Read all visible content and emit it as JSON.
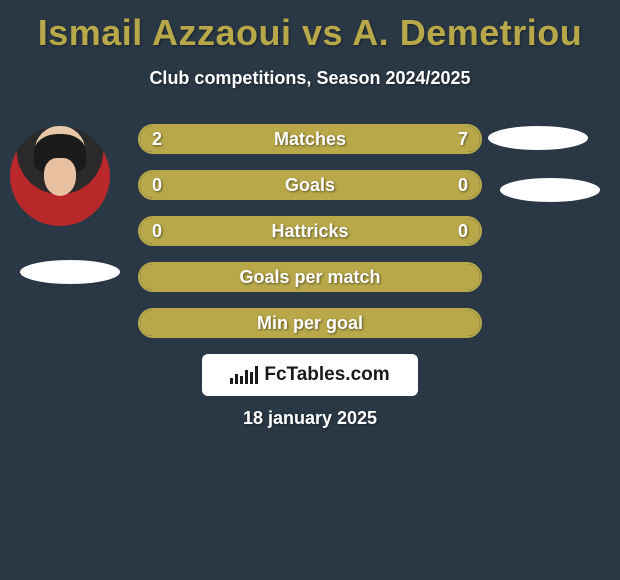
{
  "title": "Ismail Azzaoui vs A. Demetriou",
  "subtitle": "Club competitions, Season 2024/2025",
  "date": "18 january 2025",
  "logo_text": "FcTables.com",
  "colors": {
    "background": "#2a3845",
    "accent": "#b8a84a",
    "text_title": "#b8a84a",
    "text_white": "#ffffff"
  },
  "bars": [
    {
      "label": "Matches",
      "left_value": "2",
      "right_value": "7",
      "left_pct": 22,
      "right_pct": 78
    },
    {
      "label": "Goals",
      "left_value": "0",
      "right_value": "0",
      "left_pct": 50,
      "right_pct": 50
    },
    {
      "label": "Hattricks",
      "left_value": "0",
      "right_value": "0",
      "left_pct": 50,
      "right_pct": 50
    },
    {
      "label": "Goals per match",
      "left_value": "",
      "right_value": "",
      "left_pct": 100,
      "right_pct": 0
    },
    {
      "label": "Min per goal",
      "left_value": "",
      "right_value": "",
      "left_pct": 100,
      "right_pct": 0
    }
  ],
  "logo_bars_heights": [
    6,
    10,
    8,
    14,
    12,
    18
  ]
}
